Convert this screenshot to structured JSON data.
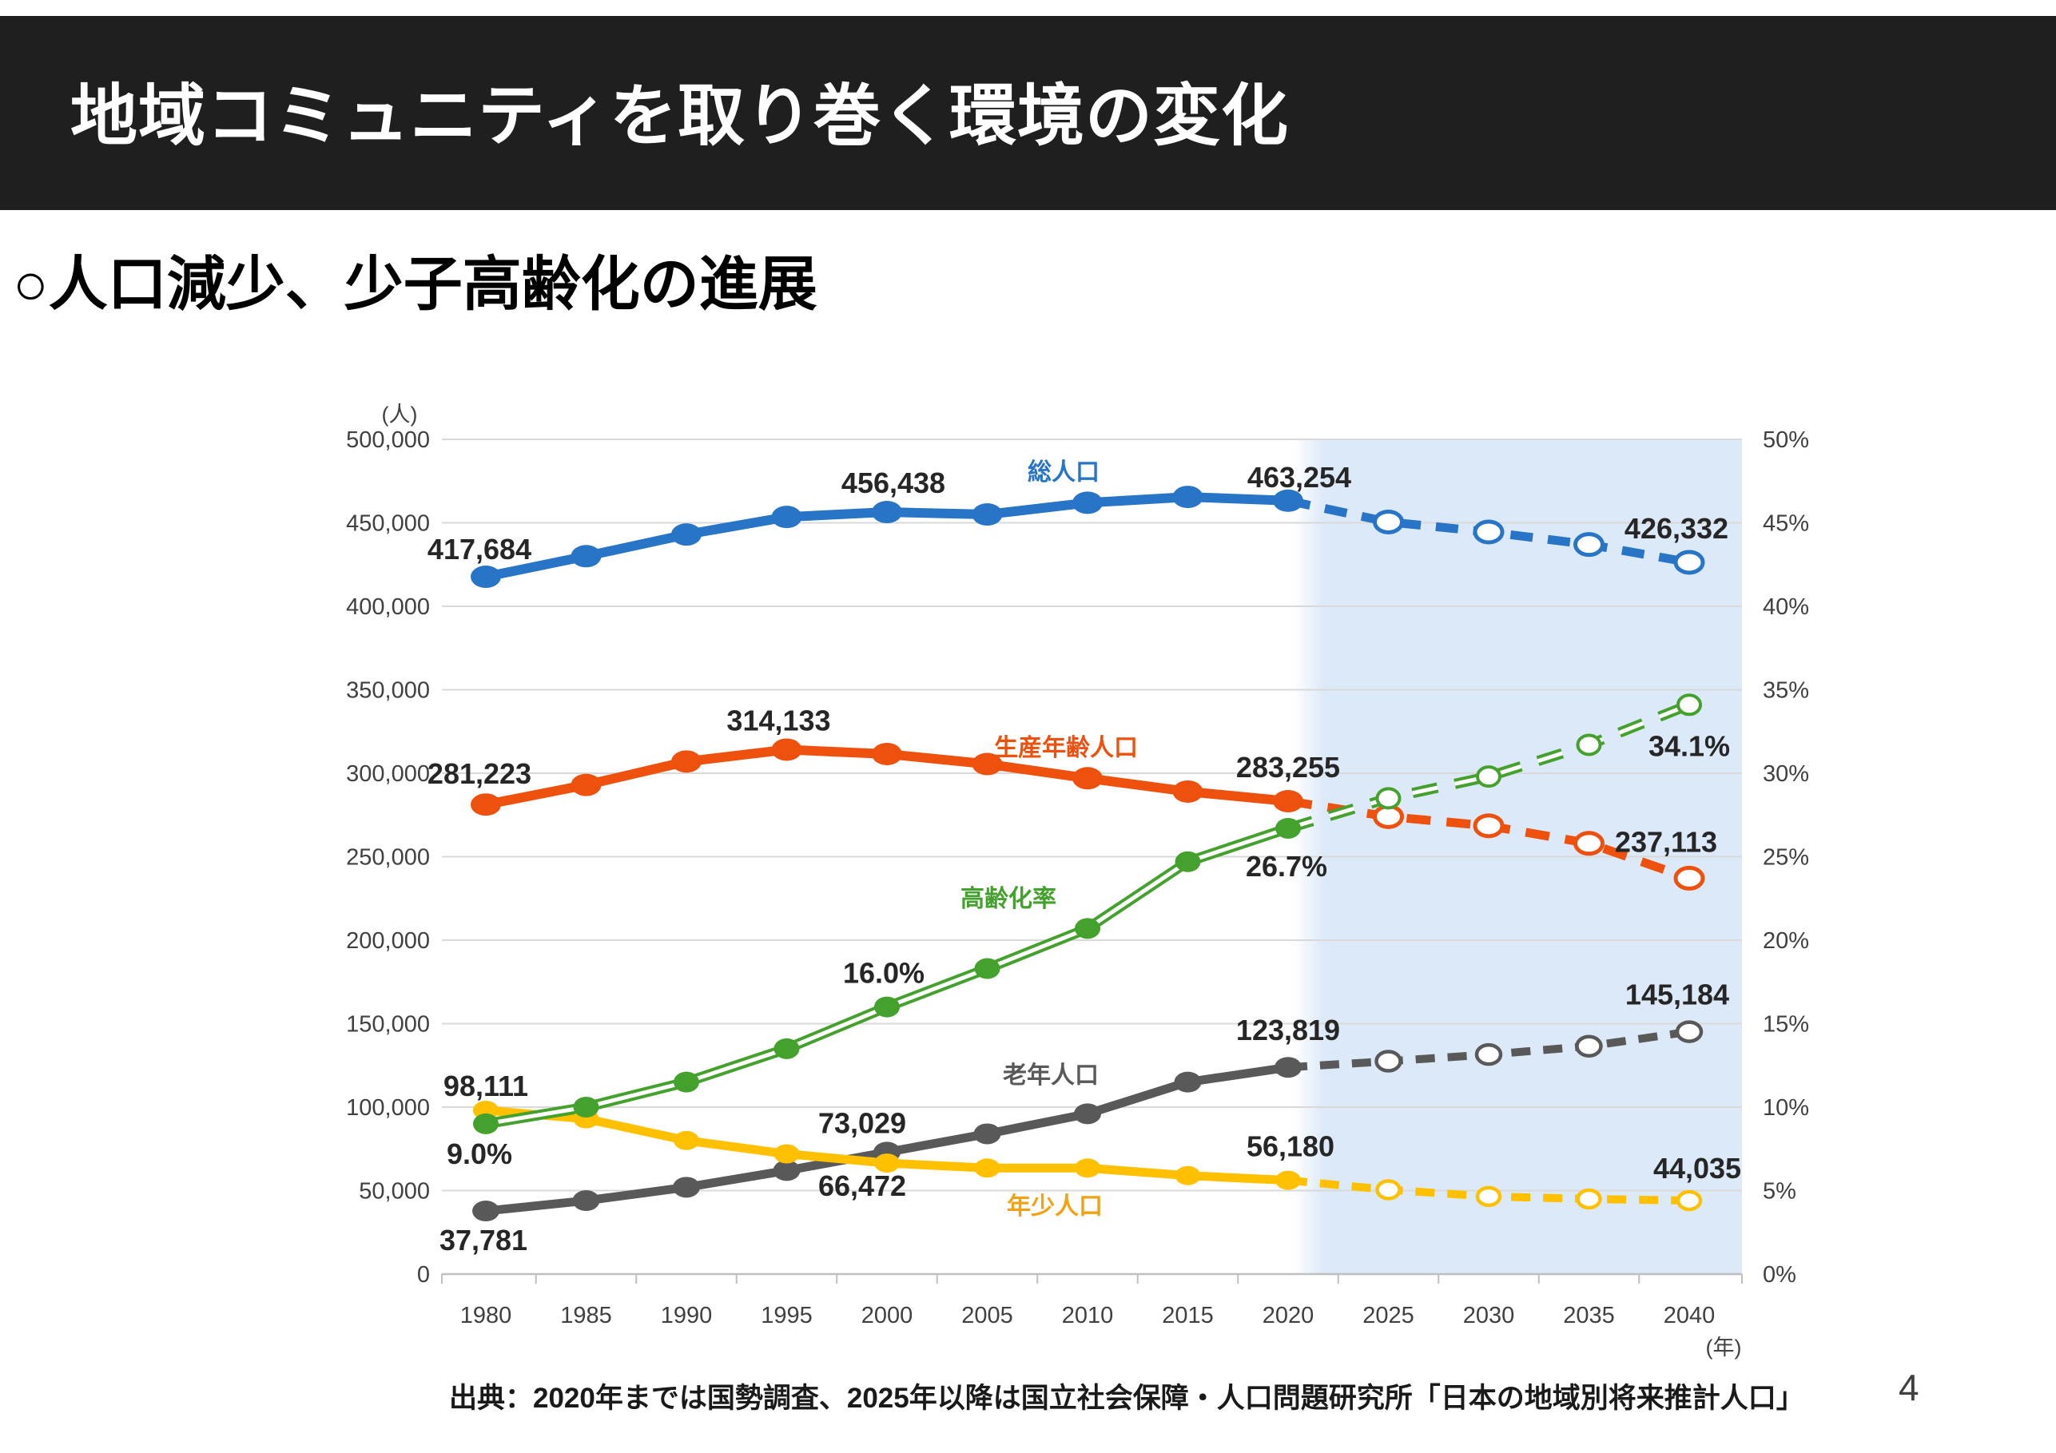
{
  "header": {
    "title": "地域コミュニティを取り巻く環境の変化"
  },
  "subtitle": "○人口減少、少子高齢化の進展",
  "footer": {
    "source": "出典：2020年までは国勢調査、2025年以降は国立社会保障・人口問題研究所「日本の地域別将来推計人口」",
    "page_number": "4"
  },
  "colors": {
    "title_bar_bg": "#1f1f1f",
    "title_text": "#ffffff",
    "grid": "#d9d9d9",
    "axis": "#bfbfbf",
    "tick_text": "#404040",
    "data_label_text": "#262626",
    "forecast_band": "#dce9f8",
    "page_bg": "#ffffff"
  },
  "chart_data": {
    "type": "line",
    "x": [
      1980,
      1985,
      1990,
      1995,
      2000,
      2005,
      2010,
      2015,
      2020,
      2025,
      2030,
      2035,
      2040
    ],
    "x_axis_unit": "(年)",
    "left_axis": {
      "unit": "(人)",
      "min": 0,
      "max": 500000,
      "ticks": [
        "500,000",
        "450,000",
        "400,000",
        "350,000",
        "300,000",
        "250,000",
        "200,000",
        "150,000",
        "100,000",
        "50,000",
        "0"
      ]
    },
    "right_axis": {
      "min": 0,
      "max": 50,
      "ticks": [
        "50%",
        "45%",
        "40%",
        "35%",
        "30%",
        "25%",
        "20%",
        "15%",
        "10%",
        "5%",
        "0%"
      ]
    },
    "grid": true,
    "legend_position": "inline-labels",
    "forecast": {
      "solid_until_year": 2020,
      "band_start_year": 2021,
      "band_end_year": 2040
    },
    "series": [
      {
        "key": "total-population",
        "name": "総人口",
        "axis": "left",
        "color": "#2874c7",
        "values": [
          417684,
          430000,
          443000,
          453500,
          456438,
          455000,
          462000,
          465500,
          463254,
          450500,
          444500,
          437000,
          426332
        ],
        "point_labels": {
          "1980": "417,684",
          "2000": "456,438",
          "2020": "463,254",
          "2040": "426,332"
        }
      },
      {
        "key": "working-age-population",
        "name": "生産年齢人口",
        "axis": "left",
        "color": "#ee500d",
        "values": [
          281223,
          293000,
          307000,
          314133,
          311500,
          305500,
          297000,
          289000,
          283255,
          274000,
          268500,
          258000,
          237113
        ],
        "point_labels": {
          "1980": "281,223",
          "1995": "314,133",
          "2020": "283,255",
          "2040": "237,113"
        }
      },
      {
        "key": "elderly-population",
        "name": "老年人口",
        "axis": "left",
        "color": "#595959",
        "values": [
          37781,
          44000,
          52000,
          62000,
          73029,
          84000,
          96000,
          115000,
          123819,
          127500,
          131500,
          136500,
          145184
        ],
        "point_labels": {
          "1980": "37,781",
          "2000": "73,029",
          "2020": "123,819",
          "2040": "145,184"
        }
      },
      {
        "key": "child-population",
        "name": "年少人口",
        "axis": "left",
        "color": "#ffc000",
        "name_color": "#efa213",
        "values": [
          98111,
          93000,
          80000,
          72000,
          66472,
          63500,
          63500,
          59000,
          56180,
          50500,
          46500,
          45000,
          44035
        ],
        "point_labels": {
          "1980": "98,111",
          "2000": "66,472",
          "2020": "56,180",
          "2040": "44,035"
        }
      },
      {
        "key": "aging-rate",
        "name": "高齢化率",
        "axis": "right",
        "style": "double",
        "color": "#44a12e",
        "values": [
          9.0,
          10.0,
          11.5,
          13.5,
          16.0,
          18.3,
          20.7,
          24.7,
          26.7,
          28.5,
          29.8,
          31.7,
          34.1
        ],
        "point_labels": {
          "1980": "9.0%",
          "2000": "16.0%",
          "2020": "26.7%",
          "2040": "34.1%"
        }
      }
    ]
  }
}
